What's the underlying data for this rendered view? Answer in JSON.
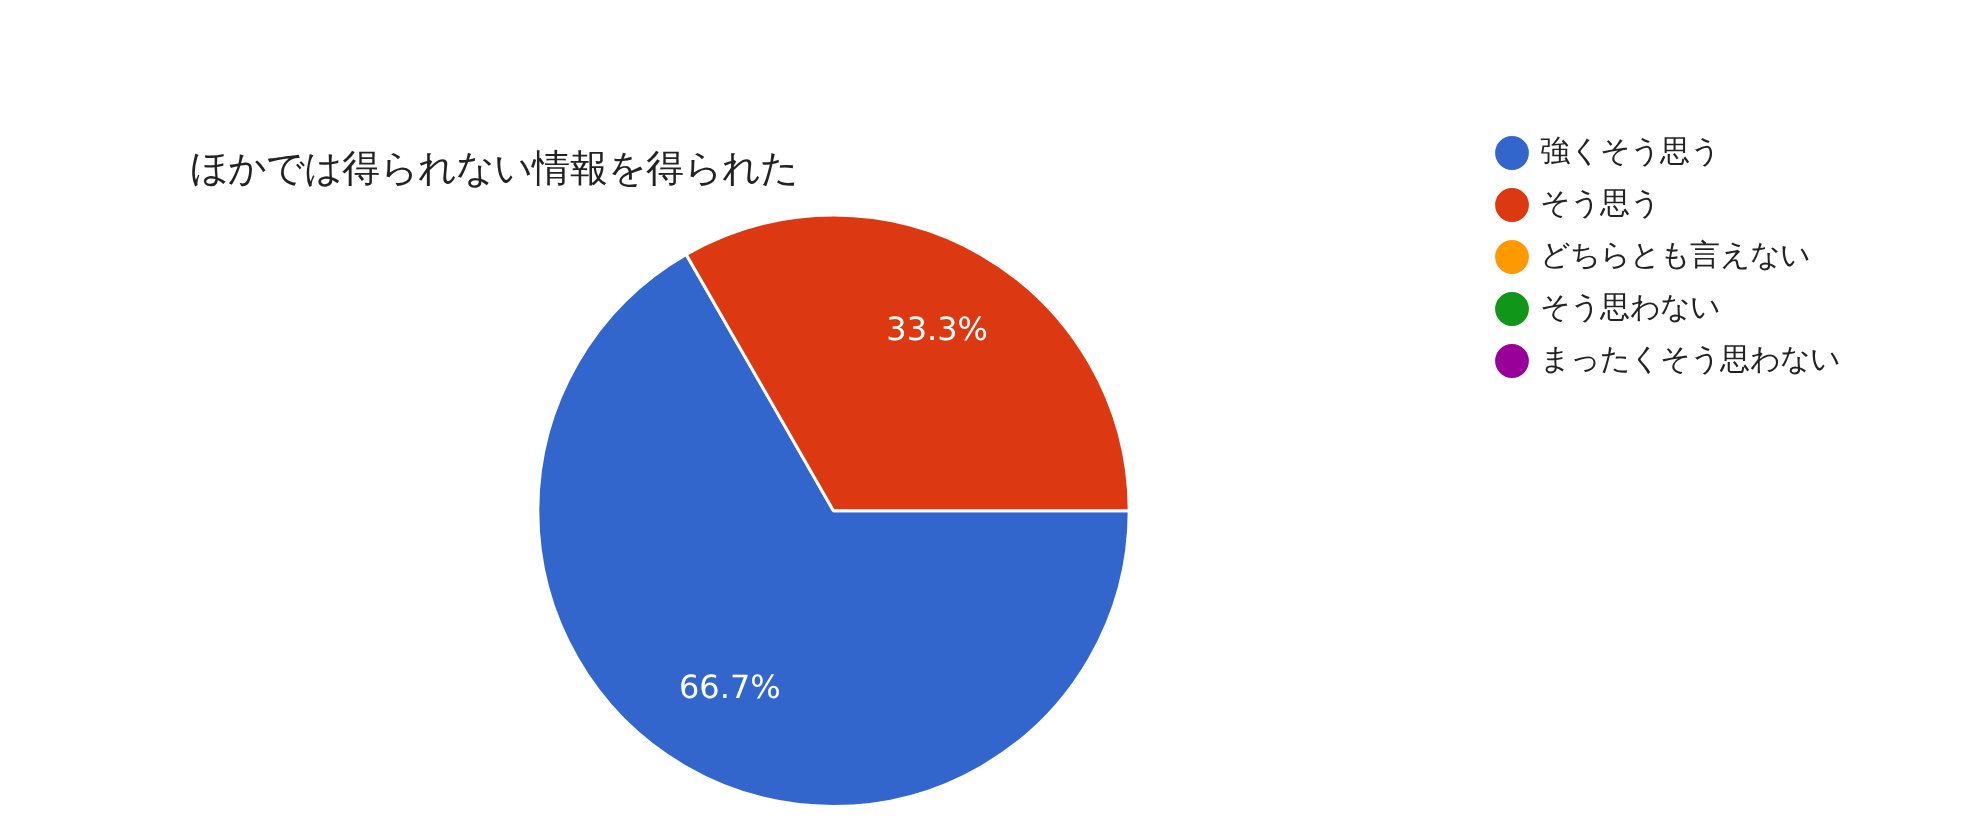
{
  "chart_data": {
    "type": "pie",
    "title": "ほかでは得られない情報を得られた",
    "categories": [
      "強くそう思う",
      "そう思う",
      "どちらとも言えない",
      "そう思わない",
      "まったくそう思わない"
    ],
    "values": [
      66.7,
      33.3,
      0,
      0,
      0
    ],
    "colors": [
      "#3366cc",
      "#dc3912",
      "#ff9900",
      "#109618",
      "#990099"
    ],
    "value_labels": [
      "66.7%",
      "33.3%",
      null,
      null,
      null
    ],
    "legend": "right",
    "marker": "circle"
  }
}
